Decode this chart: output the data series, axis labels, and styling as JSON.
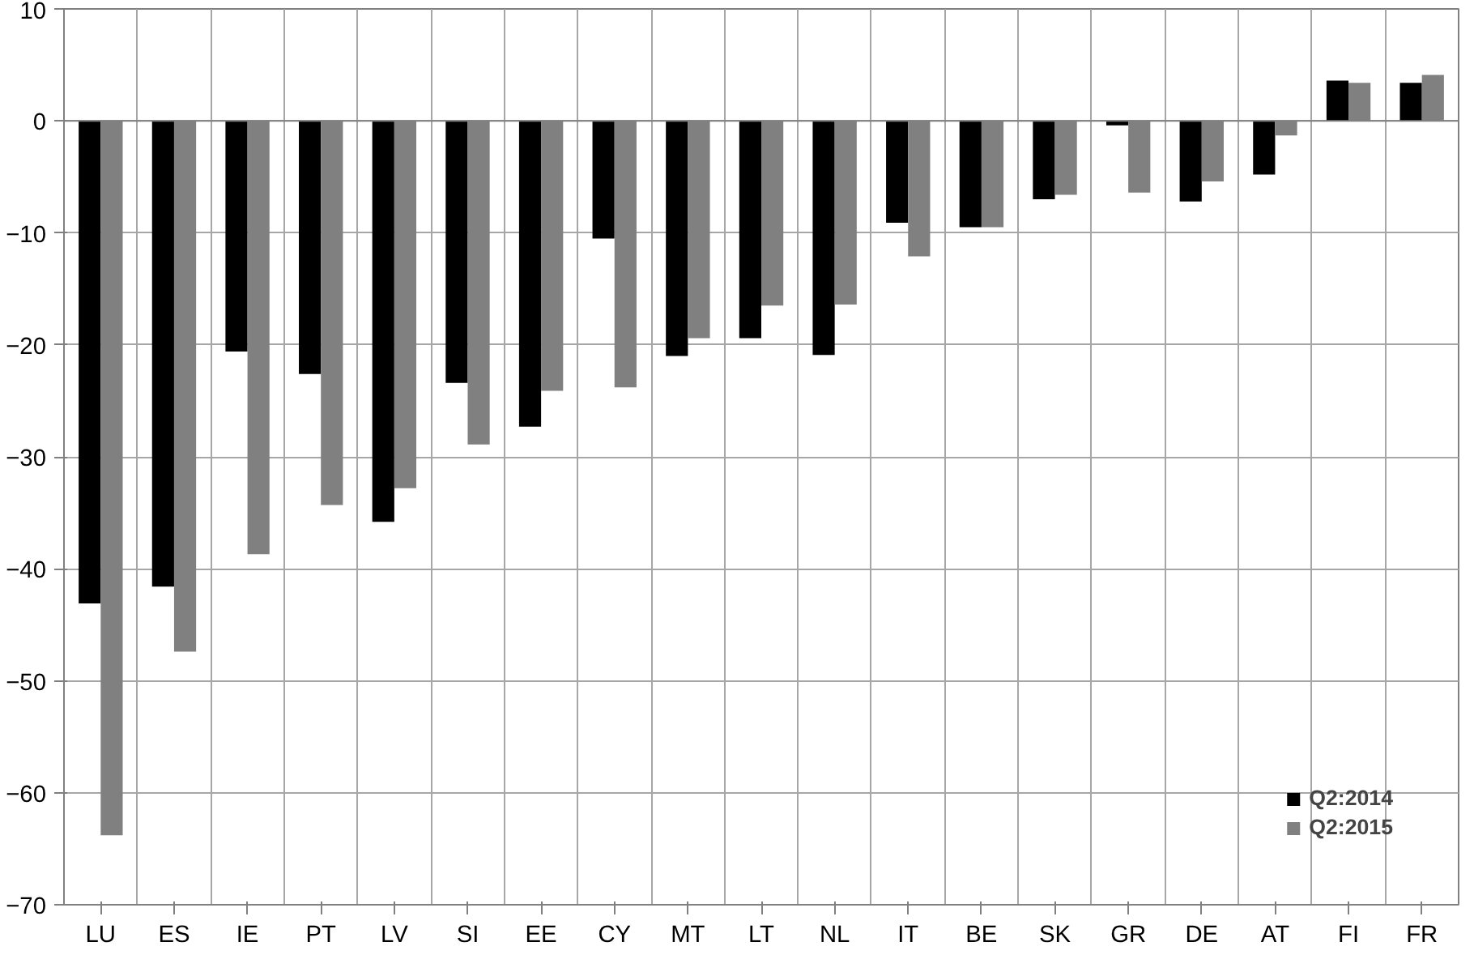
{
  "chart_data": {
    "type": "bar",
    "categories": [
      "LU",
      "ES",
      "IE",
      "PT",
      "LV",
      "SI",
      "EE",
      "CY",
      "MT",
      "LT",
      "NL",
      "IT",
      "BE",
      "SK",
      "GR",
      "DE",
      "AT",
      "FI",
      "FR"
    ],
    "series": [
      {
        "name": "Q2:2014",
        "color": "#000000",
        "values": [
          -43.1,
          -41.6,
          -20.6,
          -22.6,
          -35.8,
          -23.4,
          -27.3,
          -10.5,
          -21.0,
          -19.4,
          -20.9,
          -9.1,
          -9.5,
          -7.0,
          -0.4,
          -7.2,
          -4.8,
          3.6,
          3.4
        ]
      },
      {
        "name": "Q2:2015",
        "color": "#808080",
        "values": [
          -63.8,
          -47.4,
          -38.7,
          -34.3,
          -32.8,
          -28.9,
          -24.1,
          -23.8,
          -19.4,
          -16.5,
          -16.4,
          -12.1,
          -9.5,
          -6.6,
          -6.4,
          -5.4,
          -1.3,
          3.4,
          4.1
        ]
      }
    ],
    "ylim": [
      -70,
      10
    ],
    "yticks": [
      -70,
      -60,
      -50,
      -40,
      -30,
      -20,
      -10,
      0,
      10
    ],
    "grid": true,
    "legend": "bottom right"
  }
}
